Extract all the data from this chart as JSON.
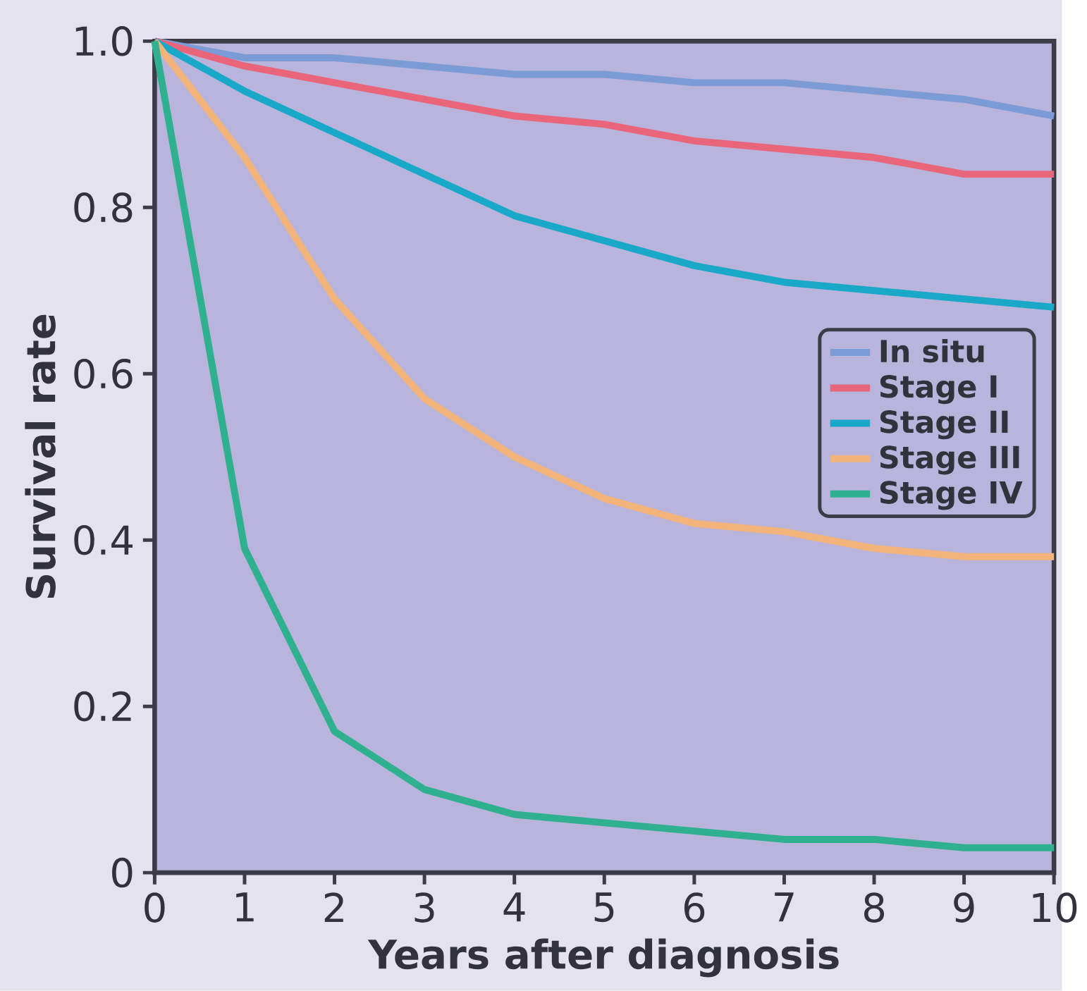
{
  "chart_data": {
    "type": "line",
    "xlabel": "Years after diagnosis",
    "ylabel": "Survival rate",
    "x": [
      0,
      1,
      2,
      3,
      4,
      5,
      6,
      7,
      8,
      9,
      10
    ],
    "series": [
      {
        "name": "In situ",
        "color": "#7b9bd6",
        "values": [
          1.0,
          0.98,
          0.98,
          0.97,
          0.96,
          0.96,
          0.95,
          0.95,
          0.94,
          0.93,
          0.91
        ]
      },
      {
        "name": "Stage I",
        "color": "#e8657a",
        "values": [
          1.0,
          0.97,
          0.95,
          0.93,
          0.91,
          0.9,
          0.88,
          0.87,
          0.86,
          0.84,
          0.84
        ]
      },
      {
        "name": "Stage II",
        "color": "#1aa8c8",
        "values": [
          1.0,
          0.94,
          0.89,
          0.84,
          0.79,
          0.76,
          0.73,
          0.71,
          0.7,
          0.69,
          0.68
        ]
      },
      {
        "name": "Stage III",
        "color": "#f2b47a",
        "values": [
          1.0,
          0.86,
          0.69,
          0.57,
          0.5,
          0.45,
          0.42,
          0.41,
          0.39,
          0.38,
          0.38
        ]
      },
      {
        "name": "Stage IV",
        "color": "#2fb08f",
        "values": [
          1.0,
          0.39,
          0.17,
          0.1,
          0.07,
          0.06,
          0.05,
          0.04,
          0.04,
          0.03,
          0.03
        ]
      }
    ],
    "xlim": [
      0,
      10
    ],
    "ylim": [
      0,
      1
    ],
    "xticks": [
      0,
      1,
      2,
      3,
      4,
      5,
      6,
      7,
      8,
      9,
      10
    ],
    "yticks": [
      0,
      0.2,
      0.4,
      0.6,
      0.8,
      {
        "value": 1,
        "label": "1.0"
      }
    ],
    "legend": "right",
    "marker": "none",
    "line_style": "solid"
  }
}
